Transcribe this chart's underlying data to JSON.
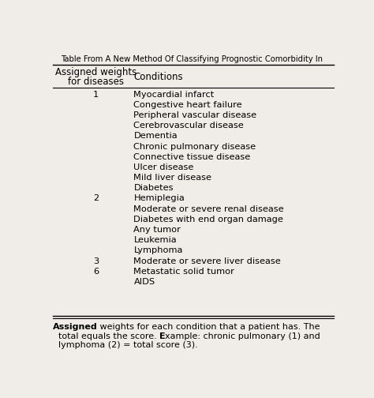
{
  "title": "Table From A New Method Of Classifying Prognostic Comorbidity In",
  "col1_header_line1": "Assigned weights",
  "col1_header_line2": "for diseases",
  "col2_header": "Conditions",
  "rows": [
    {
      "weight": "1",
      "conditions": [
        "Myocardial infarct",
        "Congestive heart failure",
        "Peripheral vascular disease",
        "Cerebrovascular disease",
        "Dementia",
        "Chronic pulmonary disease",
        "Connective tissue disease",
        "Ulcer disease",
        "Mild liver disease",
        "Diabetes"
      ]
    },
    {
      "weight": "2",
      "conditions": [
        "Hemiplegia",
        "Moderate or severe renal disease",
        "Diabetes with end organ damage",
        "Any tumor",
        "Leukemia",
        "Lymphoma"
      ]
    },
    {
      "weight": "3",
      "conditions": [
        "Moderate or severe liver disease"
      ]
    },
    {
      "weight": "6",
      "conditions": [
        "Metastatic solid tumor",
        "AIDS"
      ]
    }
  ],
  "footnote_bold_words": [
    "Assigned",
    "Example:"
  ],
  "bg_color": "#f0ede8",
  "text_color": "#000000",
  "font_size": 8.2,
  "header_font_size": 8.5,
  "footnote_font_size": 8.0
}
